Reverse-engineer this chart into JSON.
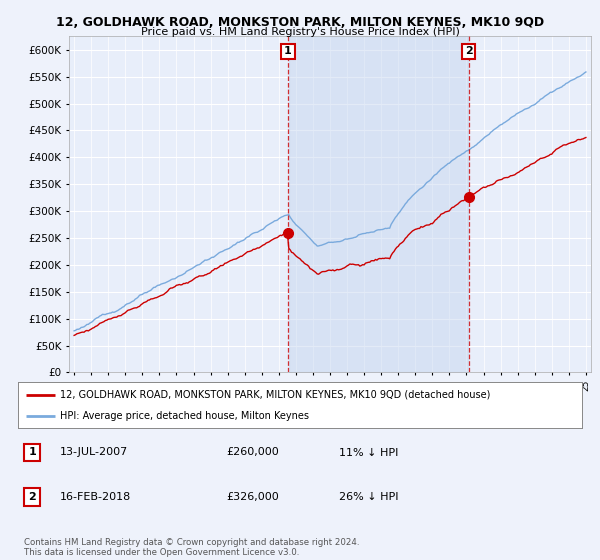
{
  "title": "12, GOLDHAWK ROAD, MONKSTON PARK, MILTON KEYNES, MK10 9QD",
  "subtitle": "Price paid vs. HM Land Registry's House Price Index (HPI)",
  "red_label": "12, GOLDHAWK ROAD, MONKSTON PARK, MILTON KEYNES, MK10 9QD (detached house)",
  "blue_label": "HPI: Average price, detached house, Milton Keynes",
  "annotation1": {
    "num": "1",
    "date": "13-JUL-2007",
    "price": "£260,000",
    "pct": "11% ↓ HPI"
  },
  "annotation2": {
    "num": "2",
    "date": "16-FEB-2018",
    "price": "£326,000",
    "pct": "26% ↓ HPI"
  },
  "footer": "Contains HM Land Registry data © Crown copyright and database right 2024.\nThis data is licensed under the Open Government Licence v3.0.",
  "ylim": [
    0,
    625000
  ],
  "yticks": [
    0,
    50000,
    100000,
    150000,
    200000,
    250000,
    300000,
    350000,
    400000,
    450000,
    500000,
    550000,
    600000
  ],
  "background_color": "#eef2fb",
  "plot_bg": "#e8eefa",
  "red_color": "#cc0000",
  "blue_color": "#7aaadd",
  "fill_color": "#c8d8f0",
  "grid_color": "#ffffff",
  "sale1_x": 2007.53,
  "sale1_price": 260000,
  "sale2_x": 2018.12,
  "sale2_price": 326000,
  "xstart": 1995,
  "xend": 2025
}
